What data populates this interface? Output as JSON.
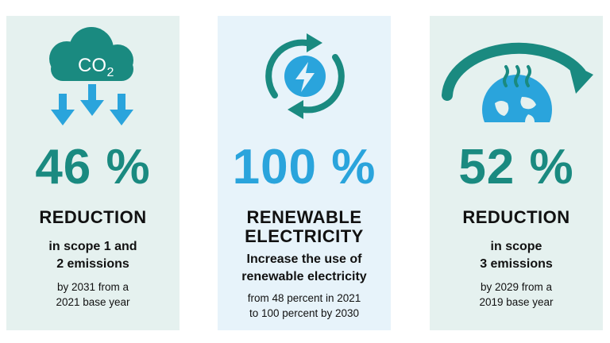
{
  "cards": [
    {
      "icon_name": "co2-cloud-down-arrows-icon",
      "icon_text": "CO2",
      "value": "46 %",
      "heading": [
        "REDUCTION"
      ],
      "subheading": [
        "in scope 1 and",
        "2 emissions"
      ],
      "detail": [
        "by 2031 from a",
        "2021 base year"
      ],
      "color": "#1a8a80"
    },
    {
      "icon_name": "renewable-electricity-cycle-icon",
      "value": "100 %",
      "heading": [
        "RENEWABLE",
        "ELECTRICITY"
      ],
      "subheading": [
        "Increase the use of",
        "renewable electricity"
      ],
      "detail": [
        "from 48 percent in 2021",
        "to 100 percent by 2030"
      ],
      "color": "#2aa4dc"
    },
    {
      "icon_name": "globe-factory-arrow-icon",
      "value": "52 %",
      "heading": [
        "REDUCTION"
      ],
      "subheading": [
        "in scope",
        "3 emissions"
      ],
      "detail": [
        "by 2029 from a",
        "2019 base year"
      ],
      "color": "#1a8a80"
    }
  ]
}
